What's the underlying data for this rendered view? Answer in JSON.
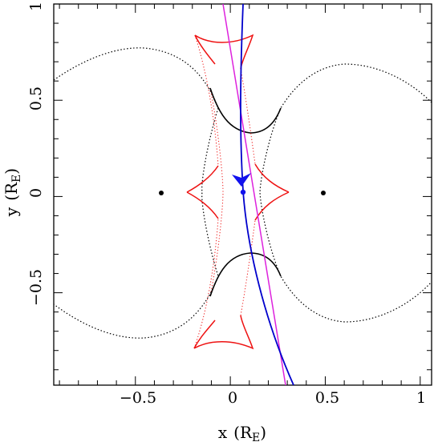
{
  "chart_data": {
    "type": "line",
    "xlabel": "x",
    "xlabel_unit": "R",
    "xlabel_unit_sub": "E",
    "ylabel": "y",
    "ylabel_unit": "R",
    "ylabel_unit_sub": "E",
    "xlim": [
      -0.93,
      1.06
    ],
    "ylim": [
      -0.98,
      1.0
    ],
    "x_tick_labels": [
      "−0.5",
      "0",
      "0.5",
      "1"
    ],
    "x_tick_values": [
      -0.5,
      0,
      0.5,
      1
    ],
    "y_tick_labels": [
      "−0.5",
      "0",
      "0.5",
      "1"
    ],
    "y_tick_values": [
      -0.5,
      0,
      0.5,
      1
    ],
    "grid": false,
    "colors": {
      "caustic": "#ee1111",
      "critical_curve": "#000000",
      "trajectory": "#0000cc",
      "trajectory_straight": "#dd22dd",
      "marker": "#1111ee",
      "lens": "#000000"
    },
    "lens_masses": [
      {
        "x": -0.38,
        "y": 0.0
      },
      {
        "x": 0.48,
        "y": 0.0
      }
    ],
    "caustic_cusps": [
      {
        "x": -0.22,
        "y": 0.84
      },
      {
        "x": 0.11,
        "y": 0.84
      },
      {
        "x": -0.24,
        "y": 0.0
      },
      {
        "x": 0.29,
        "y": 0.0
      },
      {
        "x": -0.21,
        "y": -0.82
      },
      {
        "x": 0.11,
        "y": -0.82
      }
    ],
    "source_position": {
      "x": 0.053,
      "y": 0.005
    },
    "straight_trajectory": [
      {
        "x": -0.01,
        "y": 1.0
      },
      {
        "x": 0.27,
        "y": -0.98
      }
    ],
    "curved_trajectory": [
      {
        "x": 0.056,
        "y": 1.0
      },
      {
        "x": 0.045,
        "y": 0.5
      },
      {
        "x": 0.053,
        "y": 0.0
      },
      {
        "x": 0.09,
        "y": -0.3
      },
      {
        "x": 0.17,
        "y": -0.55
      },
      {
        "x": 0.27,
        "y": -0.8
      },
      {
        "x": 0.33,
        "y": -0.98
      }
    ]
  }
}
